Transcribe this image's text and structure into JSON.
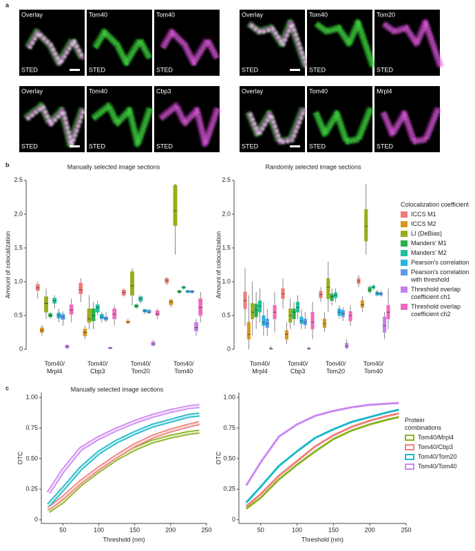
{
  "figure": {
    "panel_labels": [
      "a",
      "b",
      "c"
    ],
    "modality": "STED",
    "image_groups": [
      [
        "Overlay",
        "Tom40",
        "Tom40"
      ],
      [
        "Overlay",
        "Tom40",
        "Tom20"
      ],
      [
        "Overlay",
        "Tom40",
        "Cbp3"
      ],
      [
        "Overlay",
        "Tom40",
        "Mrpl4"
      ]
    ]
  },
  "chart_data": [
    {
      "type": "box",
      "title": "Manually selected image sections",
      "ylabel": "Amount of colocalization",
      "categories": [
        "Tom40/\nMrpl4",
        "Tom40/\nCbp3",
        "Tom40/\nTom20",
        "Tom40/\nTom40"
      ],
      "ylim": [
        -0.1,
        2.6
      ],
      "yticks": [
        0,
        0.5,
        {
          "value": 1,
          "label": "1.0"
        },
        1.5,
        {
          "value": 2,
          "label": "2.0"
        },
        2.5
      ],
      "series": [
        {
          "color": "#f07a78",
          "values": [
            [
              0.75,
              0.87,
              0.91,
              0.96,
              1.0
            ],
            [
              0.7,
              0.82,
              0.88,
              0.98,
              1.05
            ],
            [
              0.78,
              0.8,
              0.84,
              0.88,
              0.9
            ],
            [
              0.95,
              0.98,
              1.02,
              1.05,
              1.07
            ]
          ]
        },
        {
          "color": "#d9961f",
          "values": [
            [
              0.2,
              0.25,
              0.28,
              0.32,
              0.36
            ],
            [
              0.15,
              0.2,
              0.25,
              0.3,
              0.35
            ],
            [
              0.37,
              0.39,
              0.4,
              0.42,
              0.45
            ],
            [
              0.62,
              0.66,
              0.7,
              0.73,
              0.75
            ]
          ]
        },
        {
          "color": "#9aad1a",
          "values": [
            [
              0.45,
              0.55,
              0.68,
              0.78,
              0.9
            ],
            [
              0.3,
              0.4,
              0.45,
              0.6,
              0.8
            ],
            [
              0.65,
              0.8,
              0.94,
              1.15,
              1.2
            ],
            [
              1.4,
              1.83,
              2.05,
              2.43,
              2.45
            ]
          ]
        },
        {
          "color": "#24b24e",
          "values": [
            [
              0.45,
              0.48,
              0.5,
              0.53,
              0.55
            ],
            [
              0.3,
              0.42,
              0.5,
              0.6,
              0.7
            ],
            [
              0.6,
              0.62,
              0.64,
              0.66,
              0.68
            ],
            [
              0.82,
              0.84,
              0.85,
              0.87,
              0.88
            ]
          ]
        },
        {
          "color": "#1ec1a0",
          "values": [
            [
              0.6,
              0.68,
              0.72,
              0.76,
              0.8
            ],
            [
              0.5,
              0.55,
              0.62,
              0.66,
              0.72
            ],
            [
              0.68,
              0.71,
              0.75,
              0.78,
              0.8
            ],
            [
              0.88,
              0.9,
              0.92,
              0.93,
              0.94
            ]
          ]
        },
        {
          "color": "#22b6e0",
          "values": [
            [
              0.4,
              0.46,
              0.5,
              0.54,
              0.6
            ],
            [
              0.4,
              0.45,
              0.48,
              0.52,
              0.55
            ],
            [
              0.52,
              0.55,
              0.57,
              0.59,
              0.6
            ],
            [
              0.82,
              0.84,
              0.86,
              0.87,
              0.88
            ]
          ]
        },
        {
          "color": "#5b9be8",
          "values": [
            [
              0.35,
              0.44,
              0.48,
              0.52,
              0.56
            ],
            [
              0.4,
              0.43,
              0.46,
              0.48,
              0.55
            ],
            [
              0.52,
              0.54,
              0.55,
              0.58,
              0.6
            ],
            [
              0.82,
              0.84,
              0.85,
              0.87,
              0.88
            ]
          ]
        },
        {
          "color": "#c77ef0",
          "values": [
            [
              0.0,
              0.02,
              0.04,
              0.06,
              0.08
            ],
            [
              0.0,
              0.01,
              0.02,
              0.03,
              0.04
            ],
            [
              0.04,
              0.06,
              0.08,
              0.11,
              0.14
            ],
            [
              0.2,
              0.27,
              0.32,
              0.4,
              0.45
            ]
          ]
        },
        {
          "color": "#f06abd",
          "values": [
            [
              0.4,
              0.52,
              0.58,
              0.66,
              0.75
            ],
            [
              0.35,
              0.45,
              0.52,
              0.6,
              0.65
            ],
            [
              0.45,
              0.5,
              0.52,
              0.57,
              0.6
            ],
            [
              0.4,
              0.5,
              0.62,
              0.75,
              0.85
            ]
          ]
        }
      ]
    },
    {
      "type": "box",
      "title": "Randomly selected image sections",
      "ylabel": "Amount of colocalization",
      "categories": [
        "Tom40/\nMrpl4",
        "Tom40/\nCbp3",
        "Tom40/\nTom20",
        "Tom40/\nTom40"
      ],
      "ylim": [
        -0.1,
        2.6
      ],
      "yticks": [
        0,
        0.5,
        {
          "value": 1,
          "label": "1.0"
        },
        1.5,
        {
          "value": 2,
          "label": "2.0"
        },
        2.5
      ],
      "legend": "right",
      "legend_title": "Colocalization coefficient",
      "series": [
        {
          "name": "ICCS M1",
          "color": "#f07a78",
          "values": [
            [
              0.35,
              0.6,
              0.72,
              0.85,
              1.2
            ],
            [
              0.6,
              0.75,
              0.82,
              0.9,
              1.05
            ],
            [
              0.7,
              0.76,
              0.81,
              0.86,
              0.92
            ],
            [
              0.92,
              0.97,
              1.01,
              1.05,
              1.1
            ]
          ]
        },
        {
          "name": "ICCS M2",
          "color": "#d9961f",
          "values": [
            [
              0.0,
              0.15,
              0.22,
              0.4,
              0.8
            ],
            [
              0.08,
              0.15,
              0.22,
              0.28,
              0.4
            ],
            [
              0.25,
              0.32,
              0.38,
              0.45,
              0.55
            ],
            [
              0.55,
              0.62,
              0.66,
              0.72,
              0.78
            ]
          ]
        },
        {
          "name": "LI (DeBias)",
          "color": "#9aad1a",
          "values": [
            [
              0.2,
              0.45,
              0.55,
              0.68,
              1.0
            ],
            [
              0.3,
              0.4,
              0.5,
              0.6,
              0.75
            ],
            [
              0.55,
              0.75,
              0.92,
              1.05,
              1.3
            ],
            [
              1.4,
              1.6,
              1.82,
              2.07,
              2.45
            ]
          ]
        },
        {
          "name": "Manders' M1",
          "color": "#24b24e",
          "values": [
            [
              0.3,
              0.48,
              0.58,
              0.67,
              0.85
            ],
            [
              0.35,
              0.45,
              0.55,
              0.6,
              0.7
            ],
            [
              0.65,
              0.72,
              0.78,
              0.82,
              0.9
            ],
            [
              0.82,
              0.85,
              0.88,
              0.92,
              0.95
            ]
          ]
        },
        {
          "name": "Manders' M2",
          "color": "#1ec1a0",
          "values": [
            [
              0.4,
              0.55,
              0.64,
              0.72,
              0.9
            ],
            [
              0.45,
              0.55,
              0.62,
              0.7,
              0.8
            ],
            [
              0.7,
              0.76,
              0.8,
              0.84,
              0.9
            ],
            [
              0.88,
              0.9,
              0.92,
              0.94,
              0.96
            ]
          ]
        },
        {
          "name": "Pearson's correlation",
          "color": "#22b6e0",
          "values": [
            [
              0.2,
              0.35,
              0.4,
              0.5,
              0.7
            ],
            [
              0.3,
              0.38,
              0.42,
              0.48,
              0.6
            ],
            [
              0.45,
              0.5,
              0.55,
              0.6,
              0.65
            ],
            [
              0.78,
              0.8,
              0.83,
              0.85,
              0.88
            ]
          ]
        },
        {
          "name": "Pearson's correlation with threshold",
          "color": "#5b9be8",
          "values": [
            [
              0.2,
              0.32,
              0.38,
              0.45,
              0.6
            ],
            [
              0.3,
              0.36,
              0.4,
              0.45,
              0.55
            ],
            [
              0.42,
              0.48,
              0.53,
              0.58,
              0.62
            ],
            [
              0.78,
              0.8,
              0.82,
              0.84,
              0.87
            ]
          ]
        },
        {
          "name": "Threshold overlap coefficient ch1",
          "color": "#c77ef0",
          "values": [
            [
              0,
              0,
              0.01,
              0.02,
              0.05
            ],
            [
              0,
              0,
              0.01,
              0.02,
              0.04
            ],
            [
              0,
              0.02,
              0.05,
              0.09,
              0.15
            ],
            [
              0.15,
              0.25,
              0.35,
              0.48,
              0.55
            ]
          ]
        },
        {
          "name": "Threshold overlap coefficient ch2",
          "color": "#f06abd",
          "values": [
            [
              0.25,
              0.45,
              0.55,
              0.65,
              0.85
            ],
            [
              0.15,
              0.3,
              0.4,
              0.55,
              0.7
            ],
            [
              0.35,
              0.42,
              0.5,
              0.56,
              0.65
            ],
            [
              0.3,
              0.45,
              0.55,
              0.65,
              0.9
            ]
          ]
        }
      ]
    },
    {
      "type": "line",
      "band": true,
      "title": "Manually selected image sections",
      "xlabel": "Threshold (nm)",
      "ylabel": "OTC",
      "x": [
        30,
        50,
        75,
        100,
        125,
        150,
        175,
        200,
        225,
        240
      ],
      "xlim": [
        20,
        250
      ],
      "xticks": [
        50,
        100,
        150,
        200,
        250
      ],
      "ylim": [
        -0.03,
        1.04
      ],
      "yticks": [
        0,
        0.25,
        {
          "value": 0.5,
          "label": "0.50"
        },
        0.75,
        {
          "value": 1,
          "label": "1.00"
        }
      ],
      "series": [
        {
          "color": "#8bb321",
          "values": [
            0.07,
            0.15,
            0.29,
            0.4,
            0.5,
            0.58,
            0.64,
            0.68,
            0.71,
            0.72
          ]
        },
        {
          "color": "#f0807a",
          "values": [
            0.09,
            0.18,
            0.31,
            0.42,
            0.52,
            0.61,
            0.68,
            0.73,
            0.77,
            0.79
          ]
        },
        {
          "color": "#1bb9c9",
          "values": [
            0.12,
            0.25,
            0.42,
            0.55,
            0.64,
            0.71,
            0.77,
            0.81,
            0.85,
            0.86
          ]
        },
        {
          "color": "#cc88f0",
          "values": [
            0.22,
            0.4,
            0.58,
            0.67,
            0.74,
            0.8,
            0.85,
            0.89,
            0.92,
            0.93
          ]
        }
      ]
    },
    {
      "type": "line",
      "xlabel": "Threshold (nm)",
      "ylabel": "OTC",
      "x": [
        30,
        50,
        75,
        100,
        125,
        150,
        175,
        200,
        225,
        240
      ],
      "xlim": [
        20,
        250
      ],
      "xticks": [
        50,
        100,
        150,
        200,
        250
      ],
      "ylim": [
        -0.03,
        1.04
      ],
      "yticks": [
        0,
        0.25,
        {
          "value": 0.5,
          "label": "0.50"
        },
        0.75,
        {
          "value": 1,
          "label": "1.00"
        }
      ],
      "legend": "right",
      "legend_title": "Protein combinations",
      "series": [
        {
          "name": "Tom40/Mrpl4",
          "color": "#8bb321",
          "values": [
            0.09,
            0.18,
            0.33,
            0.45,
            0.56,
            0.66,
            0.73,
            0.78,
            0.82,
            0.84
          ]
        },
        {
          "name": "Tom40/Cbp3",
          "color": "#f0807a",
          "values": [
            0.11,
            0.21,
            0.36,
            0.48,
            0.6,
            0.69,
            0.76,
            0.81,
            0.85,
            0.87
          ]
        },
        {
          "name": "Tom40/Tom20",
          "color": "#1bb9c9",
          "values": [
            0.14,
            0.27,
            0.44,
            0.56,
            0.67,
            0.74,
            0.8,
            0.84,
            0.88,
            0.9
          ]
        },
        {
          "name": "Tom40/Tom40",
          "color": "#cc88f0",
          "values": [
            0.28,
            0.47,
            0.68,
            0.78,
            0.85,
            0.89,
            0.92,
            0.94,
            0.95,
            0.955
          ]
        }
      ]
    }
  ]
}
